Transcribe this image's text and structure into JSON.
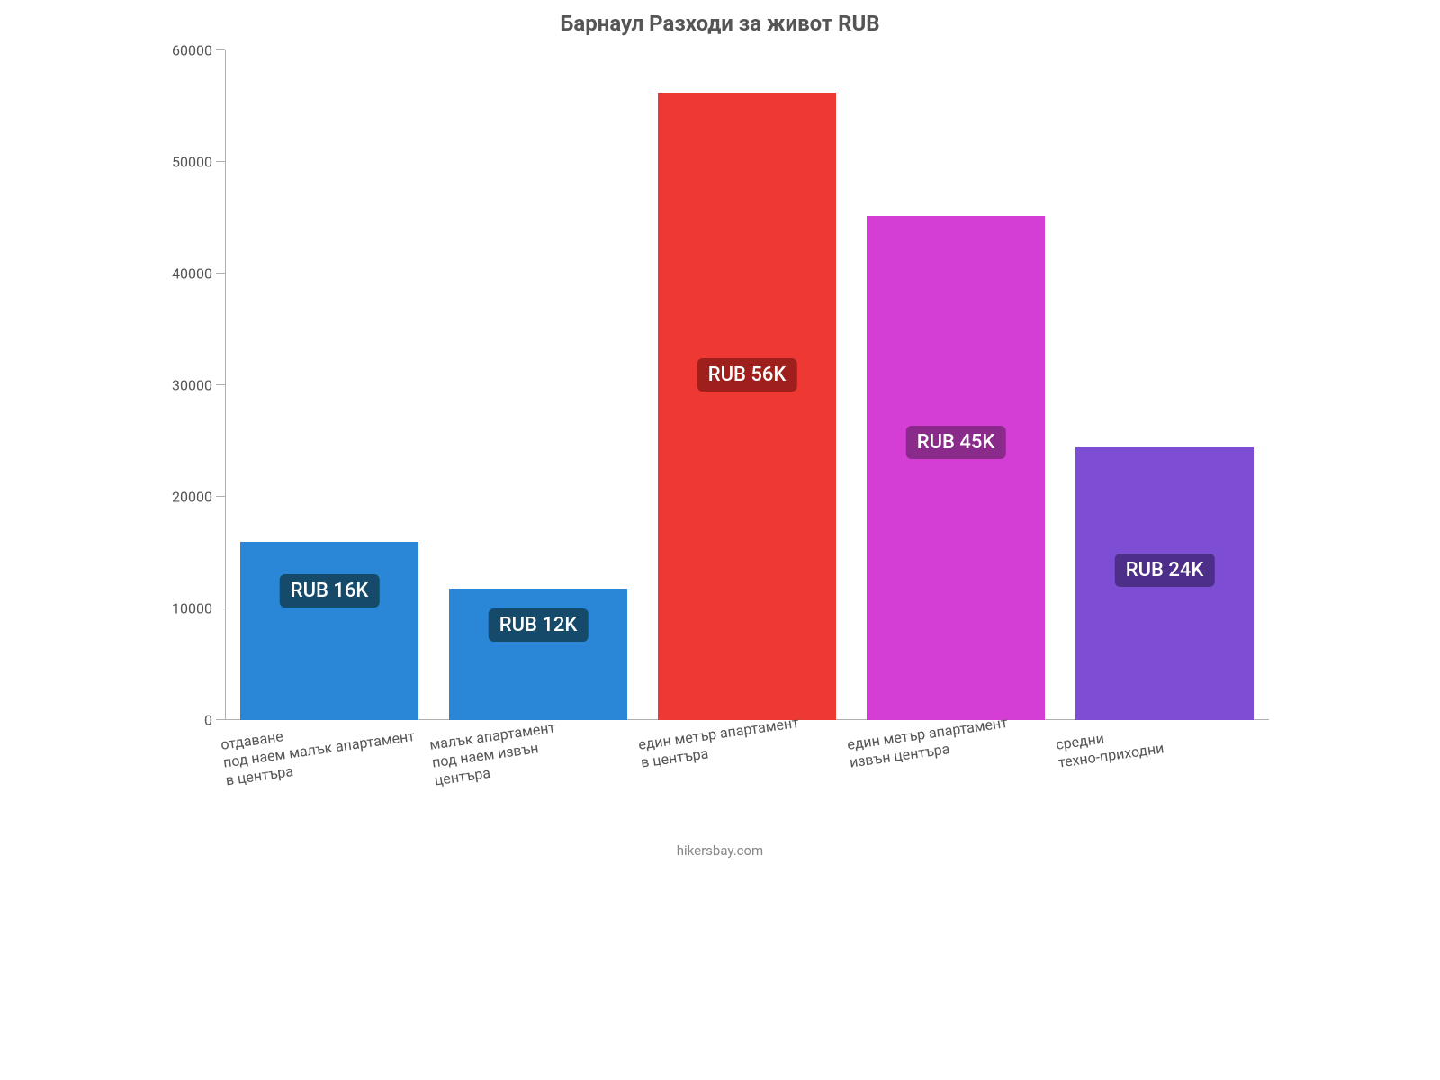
{
  "chart": {
    "type": "bar",
    "title": "Барнаул Разходи за живот RUB",
    "title_fontsize": 24,
    "title_color": "#555555",
    "background_color": "#ffffff",
    "axis_color": "#b0b0b0",
    "tick_label_color": "#555555",
    "tick_fontsize": 16,
    "ylim": [
      0,
      60000
    ],
    "ytick_step": 10000,
    "yticks": [
      {
        "v": 0,
        "label": "0"
      },
      {
        "v": 10000,
        "label": "10000"
      },
      {
        "v": 20000,
        "label": "20000"
      },
      {
        "v": 30000,
        "label": "30000"
      },
      {
        "v": 40000,
        "label": "40000"
      },
      {
        "v": 50000,
        "label": "50000"
      },
      {
        "v": 60000,
        "label": "60000"
      }
    ],
    "bar_width_pct": 17,
    "bar_gap_pct": 3,
    "bars": [
      {
        "category": "отдаване\nпод наем малък апартамент\nв центъра",
        "value": 16000,
        "color": "#2a87d7",
        "value_label": "RUB 16K",
        "badge_bg": "#164a6b",
        "badge_text": "#ffffff"
      },
      {
        "category": "малък апартамент\nпод наем извън\nцентъра",
        "value": 11800,
        "color": "#2a87d7",
        "value_label": "RUB 12K",
        "badge_bg": "#164a6b",
        "badge_text": "#ffffff"
      },
      {
        "category": "един метър апартамент\nв центъра",
        "value": 56200,
        "color": "#ed3833",
        "value_label": "RUB 56K",
        "badge_bg": "#9e1f1b",
        "badge_text": "#ffffff"
      },
      {
        "category": "един метър апартамент\nизвън центъра",
        "value": 45200,
        "color": "#d53ed5",
        "value_label": "RUB 45K",
        "badge_bg": "#8a2a8a",
        "badge_text": "#ffffff"
      },
      {
        "category": "средни\nтехно-приходни",
        "value": 24400,
        "color": "#7d4dd3",
        "value_label": "RUB 24K",
        "badge_bg": "#4d2f8a",
        "badge_text": "#ffffff"
      }
    ],
    "footer": "hikersbay.com",
    "footer_color": "#888888",
    "footer_fontsize": 15,
    "value_label_fontsize": 22
  }
}
